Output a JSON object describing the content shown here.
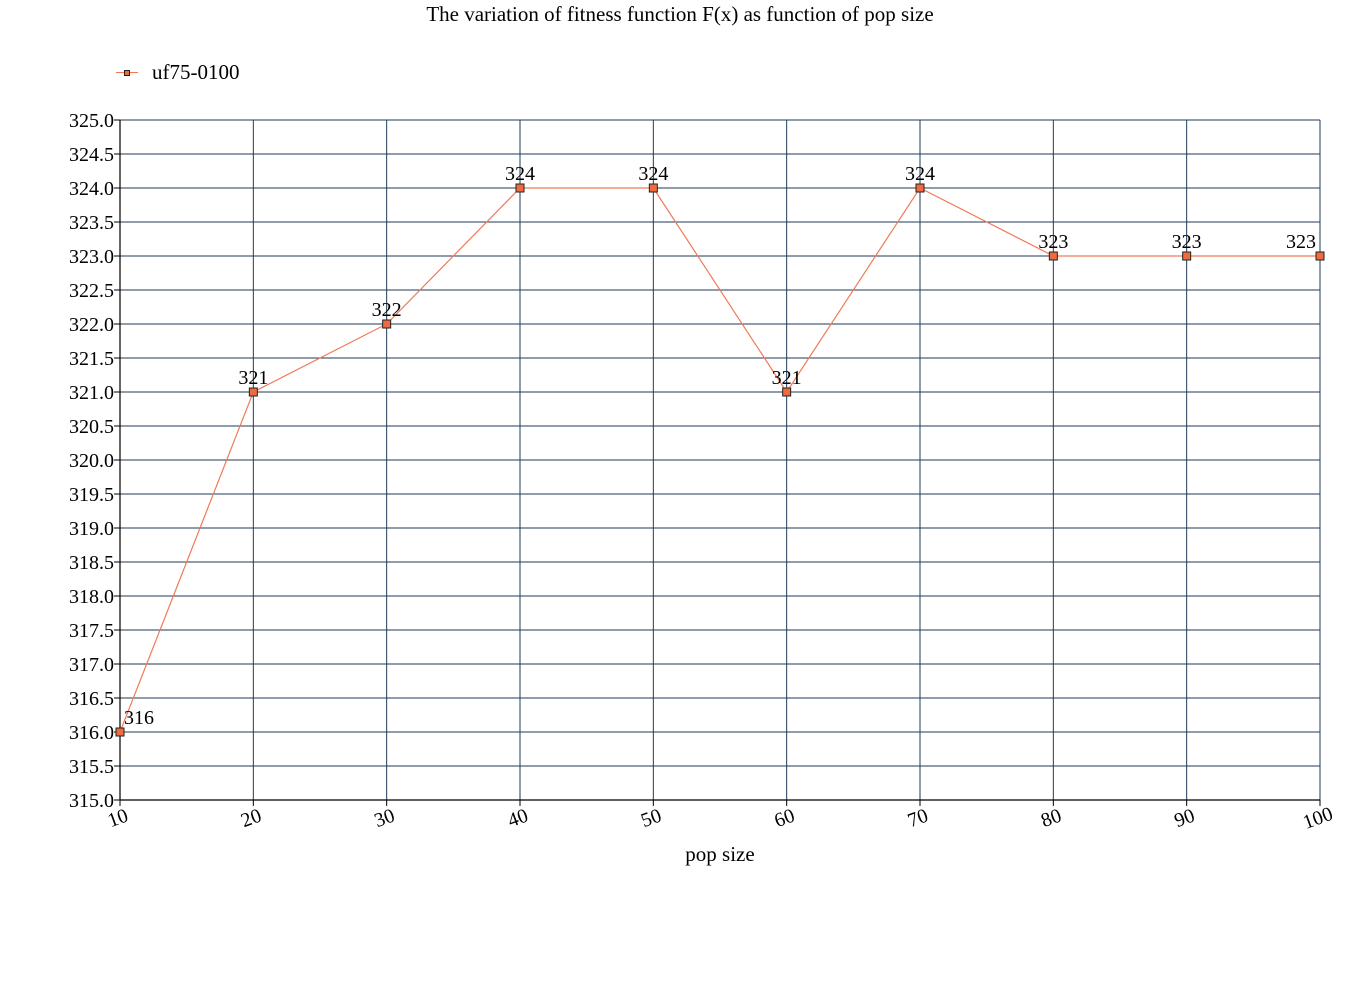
{
  "chart_data": {
    "type": "line",
    "title": "The variation of fitness function F(x) as function of pop size",
    "xlabel": "pop size",
    "ylabel": "",
    "categories": [
      "10",
      "20",
      "30",
      "40",
      "50",
      "60",
      "70",
      "80",
      "90",
      "100"
    ],
    "series": [
      {
        "name": "uf75-0100",
        "values": [
          316,
          321,
          322,
          324,
          324,
          321,
          324,
          323,
          323,
          323
        ],
        "data_labels": [
          "316",
          "321",
          "322",
          "324",
          "324",
          "321",
          "324",
          "323",
          "323",
          "323"
        ],
        "color": "#f07a58",
        "marker_color": "#f06a40"
      }
    ],
    "ylim": [
      315.0,
      325.0
    ],
    "ystep": 0.5,
    "ytick_decimals": 1,
    "grid": true,
    "grid_color": "#1f3a5a",
    "legend_position": "top-left"
  }
}
